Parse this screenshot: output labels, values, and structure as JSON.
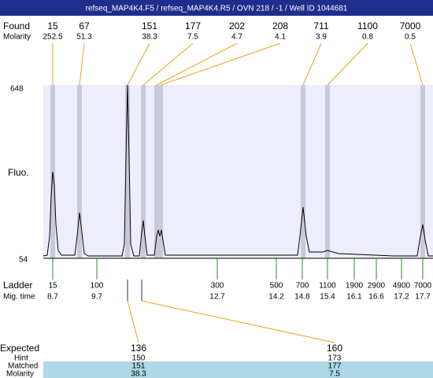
{
  "title": "refseq_MAP4K4.F5 / refseq_MAP4K4.R5 / OVN 218 / -1 / Well ID 1044681",
  "found": {
    "label": "Found",
    "molarity_label": "Molarity",
    "peaks": [
      {
        "size": "15",
        "molarity": "252.5"
      },
      {
        "size": "67",
        "molarity": "51.3"
      },
      {
        "size": "151",
        "molarity": "38.3"
      },
      {
        "size": "177",
        "molarity": "7.5"
      },
      {
        "size": "202",
        "molarity": "4.7"
      },
      {
        "size": "208",
        "molarity": "4.1"
      },
      {
        "size": "711",
        "molarity": "3.9"
      },
      {
        "size": "1100",
        "molarity": "0.8"
      },
      {
        "size": "7000",
        "molarity": "0.5"
      }
    ]
  },
  "y_axis": {
    "label": "Fluo.",
    "max": "648",
    "min": "54"
  },
  "ladder": {
    "label": "Ladder",
    "time_label": "Mig. time",
    "items": [
      {
        "size": "15",
        "time": "8.7"
      },
      {
        "size": "100",
        "time": "9.7"
      },
      {
        "size": "300",
        "time": "12.7"
      },
      {
        "size": "500",
        "time": "14.2"
      },
      {
        "size": "700",
        "time": "14.8"
      },
      {
        "size": "1100",
        "time": "15.4"
      },
      {
        "size": "1900",
        "time": "16.1"
      },
      {
        "size": "2900",
        "time": "16.6"
      },
      {
        "size": "4900",
        "time": "17.2"
      },
      {
        "size": "7000",
        "time": "17.7"
      }
    ]
  },
  "expected": {
    "labels": [
      "Expected",
      "Hint",
      "Matched",
      "Molarity"
    ],
    "columns": [
      {
        "expected": "136",
        "hint": "150",
        "matched": "151",
        "molarity": "38.3"
      },
      {
        "expected": "160",
        "hint": "173",
        "matched": "177",
        "molarity": "7.5"
      }
    ]
  }
}
